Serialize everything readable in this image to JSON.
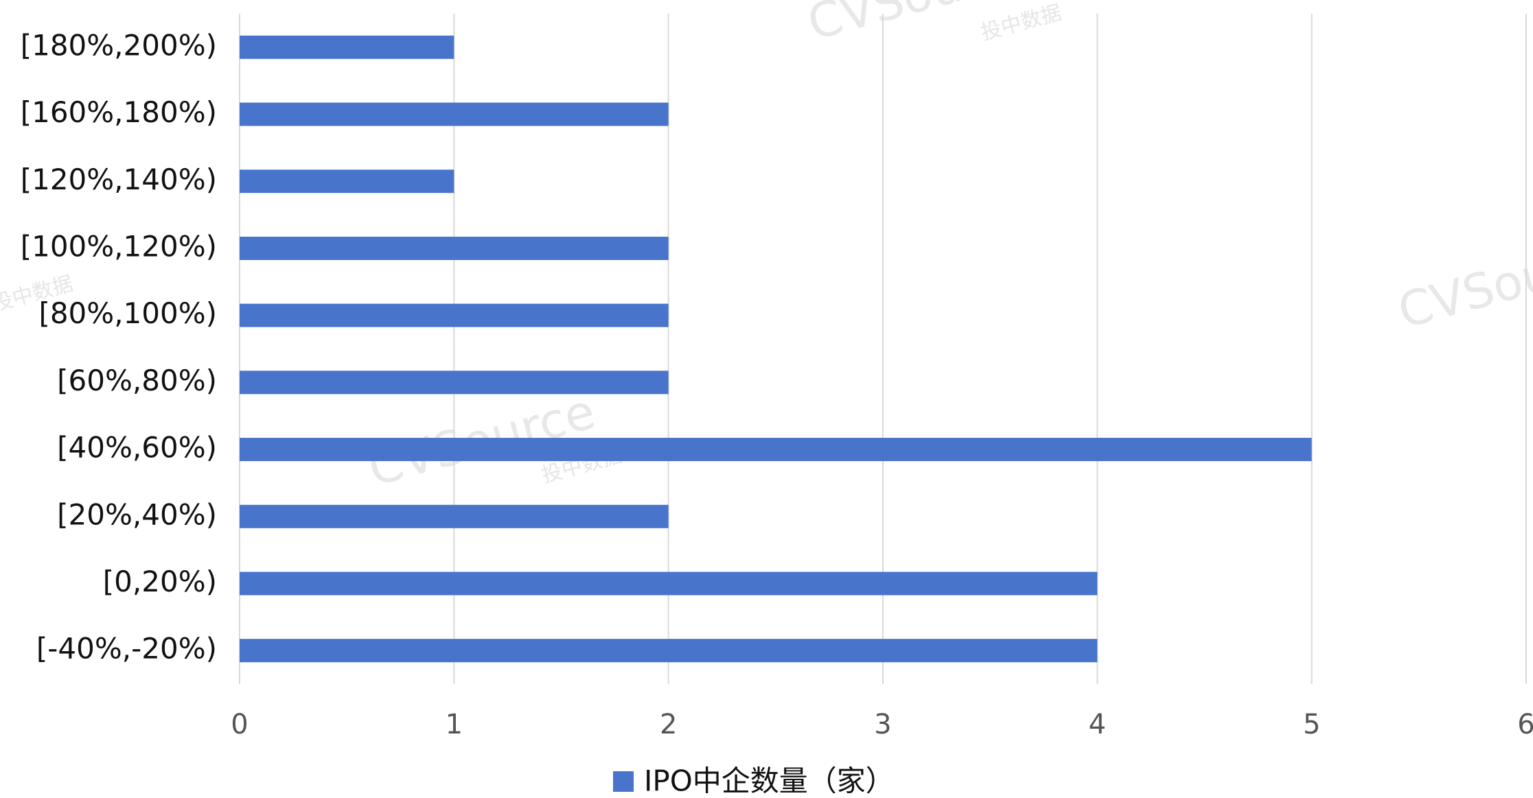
{
  "chart_data": {
    "type": "barh",
    "categories": [
      "[180%,200%)",
      "[160%,180%)",
      "[120%,140%)",
      "[100%,120%)",
      "[80%,100%)",
      "[60%,80%)",
      "[40%,60%)",
      "[20%,40%)",
      "[0,20%)",
      "[-40%,-20%)"
    ],
    "series": [
      {
        "name": "IPO中企数量（家）",
        "color": "#4874cb",
        "values": [
          1,
          2,
          1,
          2,
          2,
          2,
          5,
          2,
          4,
          4
        ]
      }
    ],
    "xlim": [
      0,
      6
    ],
    "xticks": [
      0,
      1,
      2,
      3,
      4,
      5,
      6
    ],
    "grid": true,
    "legend": "bottom",
    "watermark": {
      "brand": "CVSource",
      "subtitle": "投中数据"
    }
  }
}
